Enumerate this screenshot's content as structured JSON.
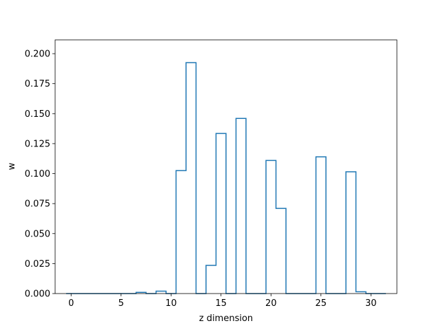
{
  "chart_data": {
    "type": "bar",
    "style": "step-histogram",
    "title": "",
    "xlabel": "z dimension",
    "ylabel": "w",
    "xlim": [
      -1.6,
      32.6
    ],
    "ylim": [
      0,
      0.2115
    ],
    "xticks": [
      0,
      5,
      10,
      15,
      20,
      25,
      30
    ],
    "yticks": [
      0.0,
      0.025,
      0.05,
      0.075,
      0.1,
      0.125,
      0.15,
      0.175,
      0.2
    ],
    "ytick_labels": [
      "0.000",
      "0.025",
      "0.050",
      "0.075",
      "0.100",
      "0.125",
      "0.150",
      "0.175",
      "0.200"
    ],
    "grid": false,
    "bin_edges_start": -0.5,
    "bin_width": 1,
    "values": [
      0,
      0,
      0,
      0,
      0,
      0,
      0,
      0.001,
      0,
      0.002,
      0,
      0.1025,
      0.1925,
      0,
      0.0235,
      0.1335,
      0,
      0.146,
      0,
      0,
      0.111,
      0.071,
      0,
      0,
      0,
      0.114,
      0,
      0,
      0.1015,
      0.0015,
      0,
      0
    ],
    "color": "#1f77b4"
  }
}
